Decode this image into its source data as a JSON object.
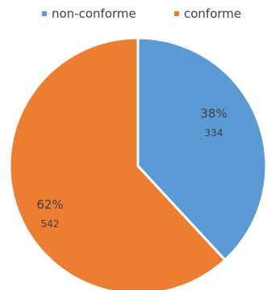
{
  "chart_data": {
    "type": "pie",
    "legend_position": "top",
    "categories": [
      "non-conforme",
      "conforme"
    ],
    "values": [
      334,
      542
    ],
    "percent_labels": [
      "38%",
      "62%"
    ],
    "value_labels": [
      "334",
      "542"
    ],
    "colors": [
      "#5B9BD5",
      "#ED7D31"
    ]
  }
}
